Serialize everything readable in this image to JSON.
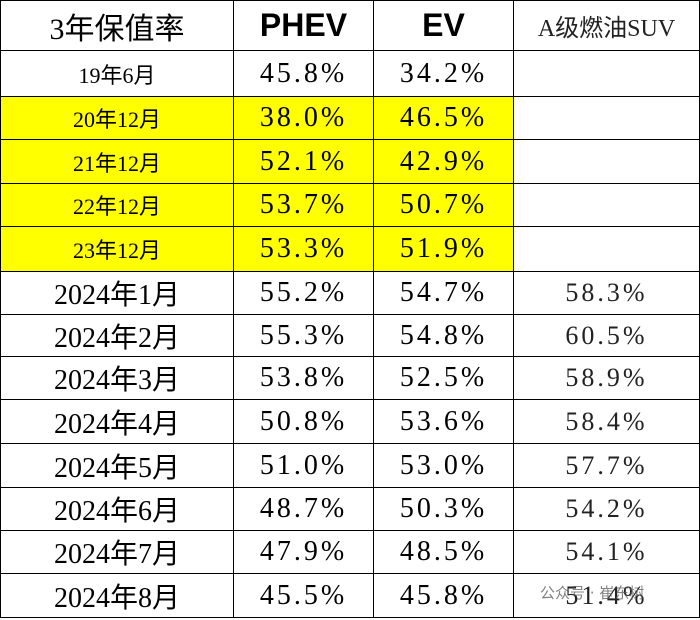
{
  "table": {
    "header": [
      "3年保值率",
      "PHEV",
      "EV",
      "A级燃油SUV"
    ],
    "rows": [
      [
        "19年6月",
        "45.8%",
        "34.2%"
      ],
      [
        "20年12月",
        "38.0%",
        "46.5%"
      ],
      [
        "21年12月",
        "52.1%",
        "42.9%"
      ],
      [
        "22年12月",
        "53.7%",
        "50.7%"
      ],
      [
        "23年12月",
        "53.3%",
        "51.9%"
      ],
      [
        "2024年1月",
        "55.2%",
        "54.7%",
        "58.3%"
      ],
      [
        "2024年2月",
        "55.3%",
        "54.8%",
        "60.5%"
      ],
      [
        "2024年3月",
        "53.8%",
        "52.5%",
        "58.9%"
      ],
      [
        "2024年4月",
        "50.8%",
        "53.6%",
        "58.4%"
      ],
      [
        "2024年5月",
        "51.0%",
        "53.0%",
        "57.7%"
      ],
      [
        "2024年6月",
        "48.7%",
        "50.3%",
        "54.2%"
      ],
      [
        "2024年7月",
        "47.9%",
        "48.5%",
        "54.1%"
      ],
      [
        "2024年8月",
        "45.5%",
        "45.8%",
        "51.4%"
      ]
    ]
  },
  "watermark": "公众号 · 崔东树"
}
